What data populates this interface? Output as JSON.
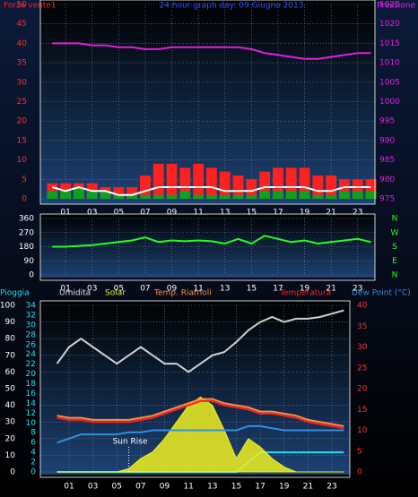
{
  "chart_data": [
    {
      "type": "bar",
      "title": "24 hour graph day: 09 Giugno 2013",
      "x": [
        0,
        1,
        2,
        3,
        4,
        5,
        6,
        7,
        8,
        9,
        10,
        11,
        12,
        13,
        14,
        15,
        16,
        17,
        18,
        19,
        20,
        21,
        22,
        23,
        24
      ],
      "xlim": [
        -0.9,
        24.3
      ],
      "xticks": [
        {
          "value": 1,
          "label": "01"
        },
        {
          "value": 3,
          "label": "03"
        },
        {
          "value": 5,
          "label": "05"
        },
        {
          "value": 7,
          "label": "07"
        },
        {
          "value": 9,
          "label": "09"
        },
        {
          "value": 11,
          "label": "11"
        },
        {
          "value": 13,
          "label": "13"
        },
        {
          "value": 15,
          "label": "15"
        },
        {
          "value": 17,
          "label": "17"
        },
        {
          "value": 19,
          "label": "19"
        },
        {
          "value": 21,
          "label": "21"
        },
        {
          "value": 23,
          "label": "23"
        }
      ],
      "ylim": [
        0,
        50
      ],
      "yticks": [
        0,
        5,
        10,
        15,
        20,
        25,
        30,
        35,
        40,
        45,
        50
      ],
      "y2lim": [
        975,
        1025
      ],
      "y2ticks": [
        975,
        980,
        985,
        990,
        995,
        1000,
        1005,
        1010,
        1015,
        1020,
        1025
      ],
      "grid": true,
      "series": [
        {
          "name": "Forza vento1",
          "type": "bar",
          "color": "#ff2020",
          "values": [
            4,
            4,
            4,
            4,
            3,
            3,
            3,
            6,
            9,
            9,
            8,
            9,
            8,
            7,
            6,
            5,
            7,
            8,
            8,
            8,
            6,
            6,
            5,
            5,
            5
          ]
        },
        {
          "type": "bar",
          "color": "#10a020",
          "values": [
            2,
            2,
            3,
            2,
            2,
            1,
            1,
            1,
            1,
            1,
            2,
            1,
            1,
            1,
            1,
            1,
            2,
            2,
            2,
            2,
            1,
            1,
            2,
            2,
            2
          ]
        },
        {
          "type": "line",
          "color": "#ffffff",
          "values": [
            3,
            2,
            3,
            2,
            2,
            1,
            1,
            2,
            3,
            3,
            3,
            3,
            3,
            2,
            2,
            2,
            3,
            3,
            3,
            3,
            2,
            2,
            3,
            3,
            3
          ]
        },
        {
          "name": "Pressione",
          "type": "line",
          "axis": "y2",
          "color": "#e020e0",
          "values": [
            1015,
            1015,
            1015,
            1014.5,
            1014.5,
            1014,
            1014,
            1013.5,
            1013.5,
            1014,
            1014,
            1014,
            1014,
            1014,
            1014,
            1013.5,
            1012.5,
            1012,
            1011.5,
            1011,
            1011,
            1011.5,
            1012,
            1012.5,
            1012.5
          ]
        }
      ]
    },
    {
      "type": "line",
      "x": [
        0,
        1,
        2,
        3,
        4,
        5,
        6,
        7,
        8,
        9,
        10,
        11,
        12,
        13,
        14,
        15,
        16,
        17,
        18,
        19,
        20,
        21,
        22,
        23,
        24
      ],
      "xlim": [
        -0.9,
        24.3
      ],
      "xticks": [
        {
          "value": 1,
          "label": "01"
        },
        {
          "value": 3,
          "label": "03"
        },
        {
          "value": 5,
          "label": "05"
        },
        {
          "value": 7,
          "label": "07"
        },
        {
          "value": 9,
          "label": "09"
        },
        {
          "value": 11,
          "label": "11"
        },
        {
          "value": 13,
          "label": "13"
        },
        {
          "value": 15,
          "label": "15"
        },
        {
          "value": 17,
          "label": "17"
        },
        {
          "value": 19,
          "label": "19"
        },
        {
          "value": 21,
          "label": "21"
        },
        {
          "value": 23,
          "label": "23"
        }
      ],
      "ylim": [
        0,
        360
      ],
      "yticks": [
        0,
        90,
        180,
        270,
        360
      ],
      "y2lim": [
        0,
        360
      ],
      "y2ticks": [
        {
          "value": 360,
          "label": "N"
        },
        {
          "value": 270,
          "label": "W"
        },
        {
          "value": 180,
          "label": "S"
        },
        {
          "value": 90,
          "label": "E"
        },
        {
          "value": 0,
          "label": "N"
        }
      ],
      "grid": true,
      "series": [
        {
          "type": "line",
          "color": "#20ff20",
          "values": [
            180,
            180,
            185,
            190,
            200,
            210,
            220,
            240,
            210,
            220,
            215,
            220,
            215,
            200,
            230,
            200,
            250,
            230,
            210,
            220,
            200,
            210,
            220,
            230,
            210
          ]
        }
      ]
    },
    {
      "type": "line",
      "x": [
        0,
        1,
        2,
        3,
        4,
        5,
        6,
        7,
        8,
        9,
        10,
        11,
        12,
        13,
        14,
        15,
        16,
        17,
        18,
        19,
        20,
        21,
        22,
        23,
        24
      ],
      "xlim": [
        -1.4,
        24.5
      ],
      "xticks": [
        {
          "value": 1,
          "label": "01"
        },
        {
          "value": 3,
          "label": "03"
        },
        {
          "value": 5,
          "label": "05"
        },
        {
          "value": 7,
          "label": "07"
        },
        {
          "value": 9,
          "label": "09"
        },
        {
          "value": 11,
          "label": "11"
        },
        {
          "value": 13,
          "label": "13"
        },
        {
          "value": 15,
          "label": "15"
        },
        {
          "value": 17,
          "label": "17"
        },
        {
          "value": 19,
          "label": "19"
        },
        {
          "value": 21,
          "label": "21"
        },
        {
          "value": 23,
          "label": "23"
        }
      ],
      "ylim": [
        0,
        100
      ],
      "yticks": [
        0,
        10,
        20,
        30,
        40,
        50,
        60,
        70,
        80,
        90,
        100
      ],
      "y2lim": [
        0,
        40
      ],
      "y2ticks": [
        0,
        5,
        10,
        15,
        20,
        25,
        30,
        35,
        40
      ],
      "y3lim": [
        0,
        34
      ],
      "y3ticks": [
        0,
        2,
        4,
        6,
        8,
        10,
        12,
        14,
        16,
        18,
        20,
        22,
        24,
        26,
        28,
        30,
        32,
        34
      ],
      "grid": true,
      "annotations": [
        {
          "text": "Sun Rise",
          "x": 6
        }
      ],
      "series": [
        {
          "name": "Pioggia",
          "type": "line",
          "axis": "y3",
          "color": "#20e0f0",
          "values": [
            0,
            0,
            0,
            0,
            0,
            0,
            0,
            0,
            0,
            0,
            0,
            0,
            0,
            0,
            0,
            0,
            2,
            4,
            4,
            4,
            4,
            4,
            4,
            4,
            4
          ]
        },
        {
          "name": "Umidita",
          "type": "line",
          "color": "#d0d0d0",
          "values": [
            65,
            75,
            80,
            75,
            70,
            65,
            70,
            75,
            70,
            65,
            65,
            60,
            65,
            70,
            72,
            78,
            85,
            90,
            93,
            90,
            92,
            92,
            93,
            95,
            97
          ]
        },
        {
          "name": "Solar",
          "type": "area",
          "color": "#f0f020",
          "values": [
            0,
            0,
            0,
            0,
            0,
            0,
            2,
            8,
            12,
            20,
            30,
            40,
            45,
            40,
            25,
            8,
            20,
            15,
            8,
            3,
            0,
            0,
            0,
            0,
            0
          ]
        },
        {
          "name": "Temp. Riarnoli",
          "type": "line",
          "axis": "y2",
          "color": "#ff9040",
          "values": [
            13.5,
            13,
            13,
            12.5,
            12.5,
            12.5,
            12.5,
            13,
            13.5,
            14.5,
            15.5,
            16.5,
            17.5,
            17.5,
            16.5,
            16,
            15.5,
            14.5,
            14.5,
            14,
            13.5,
            12.5,
            12,
            11.5,
            11
          ]
        },
        {
          "name": "Temperatura",
          "type": "line",
          "axis": "y2",
          "color": "#ff2020",
          "values": [
            13,
            12.5,
            12.5,
            12,
            12,
            12,
            12,
            12.5,
            13,
            14,
            15,
            16,
            17,
            17,
            16,
            15.5,
            15,
            14,
            14,
            13.5,
            13,
            12,
            11.5,
            11,
            10.5
          ]
        },
        {
          "name": "Dew Point (°C)",
          "type": "line",
          "axis": "y2",
          "color": "#3090e0",
          "values": [
            7,
            8,
            9,
            9,
            9,
            9,
            9.5,
            9.5,
            10,
            10,
            10,
            10,
            10,
            10,
            10,
            10,
            11,
            11,
            10.5,
            10,
            10,
            10,
            10,
            10,
            10
          ]
        }
      ]
    }
  ]
}
